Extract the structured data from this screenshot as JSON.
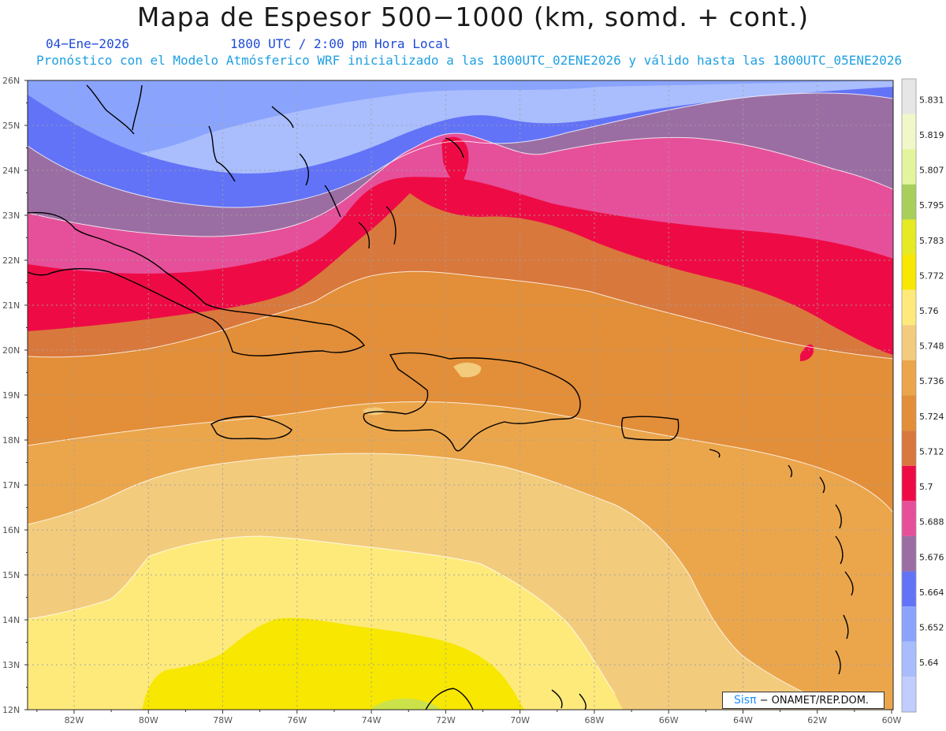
{
  "header": {
    "title": "Mapa de Espesor 500−1000 (km, somd. + cont.)",
    "date": "04−Ene−2026",
    "time": "1800 UTC / 2:00 pm Hora Local",
    "model": "Pronóstico con el Modelo Atmósferico WRF inicializado a las 1800UTC_02ENE2026 y válido hasta las  1800UTC_05ENE2026"
  },
  "credit": {
    "logo": "Sisπ",
    "text": "− ONAMET/REP.DOM."
  },
  "axes": {
    "lat_labels": [
      "26N",
      "25N",
      "24N",
      "23N",
      "22N",
      "21N",
      "20N",
      "19N",
      "18N",
      "17N",
      "16N",
      "15N",
      "14N",
      "13N",
      "12N"
    ],
    "lon_labels": [
      "82W",
      "80W",
      "78W",
      "76W",
      "74W",
      "72W",
      "70W",
      "68W",
      "66W",
      "64W",
      "62W",
      "60W"
    ]
  },
  "legend": {
    "values": [
      "5.831",
      "5.819",
      "5.807",
      "5.795",
      "5.783",
      "5.772",
      "5.76",
      "5.748",
      "5.736",
      "5.724",
      "5.712",
      "5.7",
      "5.688",
      "5.676",
      "5.664",
      "5.652",
      "5.64"
    ],
    "colors": [
      "#e6e6e6",
      "#f1f7c9",
      "#e3f59c",
      "#a9cf5b",
      "#e6ea22",
      "#f7e701",
      "#fdea7b",
      "#f2cb7c",
      "#eba64c",
      "#e38e38",
      "#d9783c",
      "#ee0b45",
      "#e6509a",
      "#9b6ea3",
      "#6273f7",
      "#8aa4fd",
      "#a9bdfd",
      "#c1cdfe"
    ]
  },
  "thickness_colors": {
    "blue_light": "#aabdfd",
    "blue_mid": "#8aa4fd",
    "blue": "#6273f7",
    "purple": "#9b6ea3",
    "pink": "#e6509a",
    "red": "#ee0b45",
    "dark_orange": "#d9783c",
    "orange": "#e38e38",
    "light_orange": "#eba64c",
    "tan": "#f2cb7c",
    "light_yellow": "#fdea7b",
    "yellow": "#f7e701"
  }
}
